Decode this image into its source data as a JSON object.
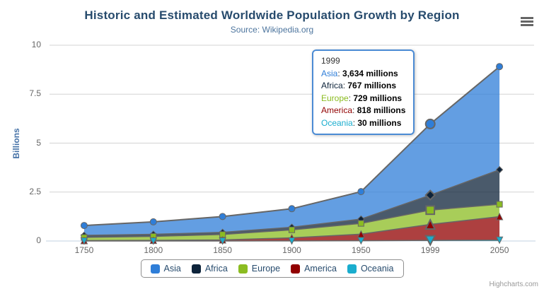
{
  "chart_data": {
    "type": "area",
    "stacking": "normal",
    "title": "Historic and Estimated Worldwide Population Growth by Region",
    "subtitle": "Source: Wikipedia.org",
    "ylabel": "Billions",
    "xlabel": "",
    "unit": "millions",
    "ylim": [
      0,
      10
    ],
    "yticks": [
      0,
      2.5,
      5,
      7.5,
      10
    ],
    "ytick_labels": [
      "0",
      "2.5",
      "5",
      "7.5",
      "10"
    ],
    "categories": [
      "1750",
      "1800",
      "1850",
      "1900",
      "1950",
      "1999",
      "2050"
    ],
    "grid": true,
    "legend_position": "bottom",
    "hover_index": 5,
    "line_color": "#666666",
    "series": [
      {
        "name": "Asia",
        "color": "#2f7ed8",
        "marker": "circle",
        "values": [
          502,
          635,
          809,
          947,
          1402,
          3634,
          5268
        ]
      },
      {
        "name": "Africa",
        "color": "#0d233a",
        "marker": "diamond",
        "values": [
          106,
          107,
          111,
          133,
          221,
          767,
          1766
        ]
      },
      {
        "name": "Europe",
        "color": "#8bbc21",
        "marker": "square",
        "values": [
          163,
          203,
          276,
          408,
          547,
          729,
          628
        ]
      },
      {
        "name": "America",
        "color": "#910000",
        "marker": "triangle",
        "values": [
          18,
          31,
          54,
          156,
          339,
          818,
          1201
        ]
      },
      {
        "name": "Oceania",
        "color": "#1aadce",
        "marker": "triangle-down",
        "values": [
          2,
          2,
          2,
          6,
          13,
          30,
          46
        ]
      }
    ]
  },
  "tooltip": {
    "header": "1999",
    "rows": [
      {
        "label": "Asia",
        "value": "3,634 millions"
      },
      {
        "label": "Africa",
        "value": "767 millions"
      },
      {
        "label": "Europe",
        "value": "729 millions"
      },
      {
        "label": "America",
        "value": "818 millions"
      },
      {
        "label": "Oceania",
        "value": "30 millions"
      }
    ]
  },
  "credits": "Highcharts.com"
}
